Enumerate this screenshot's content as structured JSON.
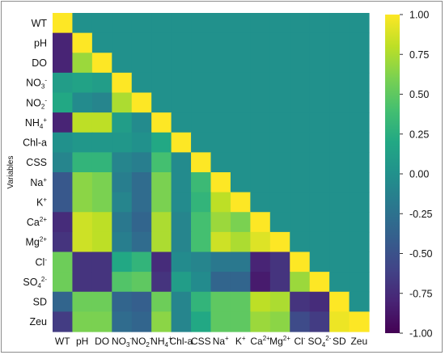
{
  "chart_data": {
    "type": "heatmap",
    "variables": [
      {
        "id": "WT",
        "base": "WT",
        "sub": "",
        "sup": ""
      },
      {
        "id": "pH",
        "base": "pH",
        "sub": "",
        "sup": ""
      },
      {
        "id": "DO",
        "base": "DO",
        "sub": "",
        "sup": ""
      },
      {
        "id": "NO3-",
        "base": "NO",
        "sub": "3",
        "sup": "-"
      },
      {
        "id": "NO2-",
        "base": "NO",
        "sub": "2",
        "sup": "-"
      },
      {
        "id": "NH4+",
        "base": "NH",
        "sub": "4",
        "sup": "+"
      },
      {
        "id": "Chl-a",
        "base": "Chl-a",
        "sub": "",
        "sup": ""
      },
      {
        "id": "CSS",
        "base": "CSS",
        "sub": "",
        "sup": ""
      },
      {
        "id": "Na+",
        "base": "Na",
        "sub": "",
        "sup": "+"
      },
      {
        "id": "K+",
        "base": "K",
        "sub": "",
        "sup": "+"
      },
      {
        "id": "Ca2+",
        "base": "Ca",
        "sub": "",
        "sup": "2+"
      },
      {
        "id": "Mg2+",
        "base": "Mg",
        "sub": "",
        "sup": "2+"
      },
      {
        "id": "Cl-",
        "base": "Cl",
        "sub": "",
        "sup": "-"
      },
      {
        "id": "SO42-",
        "base": "SO",
        "sub": "4",
        "sup": "2-"
      },
      {
        "id": "SD",
        "base": "SD",
        "sub": "",
        "sup": ""
      },
      {
        "id": "Zeu",
        "base": "Zeu",
        "sub": "",
        "sup": ""
      }
    ],
    "ylabel": "Variables",
    "xlabel": "",
    "colorbar": {
      "vmin": -1.0,
      "vmax": 1.0,
      "ticks": [
        "1.00",
        "0.75",
        "0.50",
        "0.25",
        "0.00",
        "-0.25",
        "-0.50",
        "-0.75",
        "-1.00"
      ],
      "colormap": "viridis"
    },
    "matrix": [
      [
        1.0,
        0.0,
        0.0,
        0.0,
        0.0,
        0.0,
        0.0,
        0.0,
        0.0,
        0.0,
        0.0,
        0.0,
        0.0,
        0.0,
        0.0,
        0.0
      ],
      [
        -0.8,
        1.0,
        0.0,
        0.0,
        0.0,
        0.0,
        0.0,
        0.0,
        0.0,
        0.0,
        0.0,
        0.0,
        0.0,
        0.0,
        0.0,
        0.0
      ],
      [
        -0.8,
        0.7,
        1.0,
        0.0,
        0.0,
        0.0,
        0.0,
        0.0,
        0.0,
        0.0,
        0.0,
        0.0,
        0.0,
        0.0,
        0.0,
        0.0
      ],
      [
        0.1,
        0.15,
        0.1,
        1.0,
        0.0,
        0.0,
        0.0,
        0.0,
        0.0,
        0.0,
        0.0,
        0.0,
        0.0,
        0.0,
        0.0,
        0.0
      ],
      [
        0.2,
        -0.05,
        -0.1,
        0.75,
        1.0,
        0.0,
        0.0,
        0.0,
        0.0,
        0.0,
        0.0,
        0.0,
        0.0,
        0.0,
        0.0,
        0.0
      ],
      [
        -0.8,
        0.8,
        0.8,
        0.1,
        -0.05,
        1.0,
        0.0,
        0.0,
        0.0,
        0.0,
        0.0,
        0.0,
        0.0,
        0.0,
        0.0,
        0.0
      ],
      [
        0.0,
        0.05,
        0.05,
        0.05,
        0.0,
        0.2,
        1.0,
        0.0,
        0.0,
        0.0,
        0.0,
        0.0,
        0.0,
        0.0,
        0.0,
        0.0
      ],
      [
        -0.1,
        0.3,
        0.3,
        -0.1,
        -0.15,
        0.4,
        -0.05,
        1.0,
        0.0,
        0.0,
        0.0,
        0.0,
        0.0,
        0.0,
        0.0,
        0.0
      ],
      [
        -0.45,
        0.65,
        0.6,
        -0.15,
        -0.3,
        0.6,
        -0.05,
        0.35,
        1.0,
        0.0,
        0.0,
        0.0,
        0.0,
        0.0,
        0.0,
        0.0
      ],
      [
        -0.45,
        0.65,
        0.6,
        -0.1,
        -0.3,
        0.6,
        -0.05,
        0.3,
        0.8,
        1.0,
        0.0,
        0.0,
        0.0,
        0.0,
        0.0,
        0.0
      ],
      [
        -0.75,
        0.85,
        0.8,
        -0.2,
        -0.35,
        0.75,
        -0.1,
        0.4,
        0.7,
        0.6,
        1.0,
        0.0,
        0.0,
        0.0,
        0.0,
        0.0
      ],
      [
        -0.7,
        0.85,
        0.8,
        -0.15,
        -0.3,
        0.75,
        -0.1,
        0.4,
        0.85,
        0.75,
        0.9,
        1.0,
        0.0,
        0.0,
        0.0,
        0.0
      ],
      [
        0.55,
        -0.7,
        -0.7,
        0.2,
        0.3,
        -0.75,
        -0.05,
        -0.1,
        -0.2,
        -0.2,
        -0.8,
        -0.7,
        1.0,
        0.0,
        0.0,
        0.0
      ],
      [
        0.55,
        -0.7,
        -0.7,
        0.45,
        0.5,
        -0.7,
        0.1,
        -0.05,
        -0.35,
        -0.35,
        -0.85,
        -0.7,
        0.7,
        1.0,
        0.0,
        0.0
      ],
      [
        -0.35,
        0.55,
        0.55,
        -0.35,
        -0.4,
        0.55,
        -0.1,
        0.3,
        0.5,
        0.5,
        0.8,
        0.75,
        -0.7,
        -0.75,
        1.0,
        0.0
      ],
      [
        -0.65,
        0.6,
        0.6,
        -0.3,
        -0.35,
        0.65,
        -0.1,
        0.2,
        0.5,
        0.5,
        0.7,
        0.65,
        -0.55,
        -0.65,
        0.95,
        1.0
      ]
    ]
  }
}
